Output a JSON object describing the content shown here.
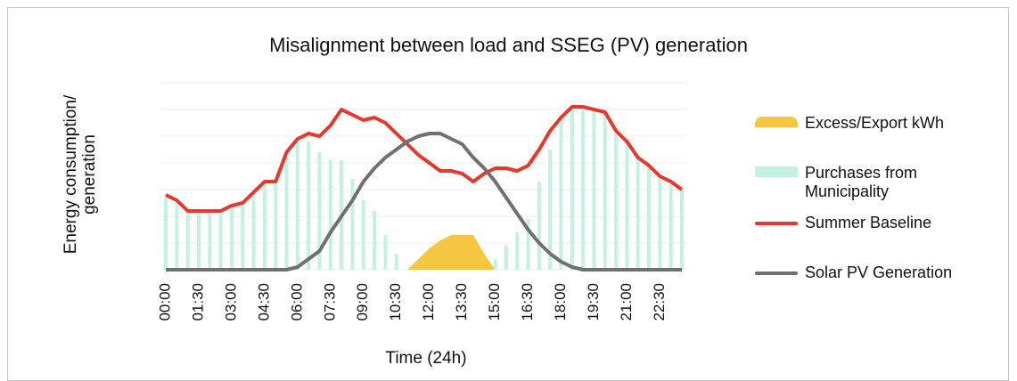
{
  "chart_data": {
    "type": "combo",
    "title": "Misalignment between load and SSEG (PV) generation",
    "y_label": "Energy consumption/ generation",
    "x_label": "Time (24h)",
    "categories": [
      "00:00",
      null,
      null,
      "01:30",
      null,
      null,
      "03:00",
      null,
      null,
      "04:30",
      null,
      null,
      "06:00",
      null,
      null,
      "07:30",
      null,
      null,
      "09:00",
      null,
      null,
      "10:30",
      null,
      null,
      "12:00",
      null,
      null,
      "13:30",
      null,
      null,
      "15:00",
      null,
      null,
      "16:30",
      null,
      null,
      "18:00",
      null,
      null,
      "19:30",
      null,
      null,
      "21:00",
      null,
      null,
      "22:30",
      null,
      null
    ],
    "ylim": [
      0,
      7
    ],
    "yticks": [
      0,
      1,
      2,
      3,
      4,
      5,
      6,
      7
    ],
    "grid": true,
    "series": [
      {
        "name": "Excess/Export kWh",
        "type": "area",
        "color": "#f7c744",
        "values": [
          null,
          null,
          null,
          null,
          null,
          null,
          null,
          null,
          null,
          null,
          null,
          null,
          null,
          null,
          null,
          null,
          null,
          null,
          null,
          null,
          null,
          null,
          0,
          0.4,
          0.8,
          1.1,
          1.3,
          1.3,
          1.3,
          0.6,
          0,
          null,
          null,
          null,
          null,
          null,
          null,
          null,
          null,
          null,
          null,
          null,
          null,
          null,
          null,
          null,
          null,
          null
        ]
      },
      {
        "name": "Purchases from Municipality",
        "type": "bar",
        "color": "#c3f3e0",
        "values": [
          2.7,
          2.5,
          2.2,
          2.1,
          2.1,
          2.1,
          2.3,
          2.5,
          2.8,
          3.2,
          3.2,
          4.2,
          4.8,
          4.8,
          4.4,
          4.1,
          4.1,
          3.4,
          2.6,
          2.2,
          1.3,
          0.6,
          0,
          0,
          0,
          0,
          0,
          0,
          0,
          0,
          0.4,
          0.9,
          1.4,
          1.9,
          3.3,
          4.5,
          5.8,
          6.0,
          6.0,
          5.9,
          5.8,
          5.1,
          4.7,
          4.2,
          3.8,
          3.5,
          3.2,
          3.0
        ]
      },
      {
        "name": "Summer Baseline",
        "type": "line",
        "color": "#e8382d",
        "values": [
          2.8,
          2.6,
          2.2,
          2.2,
          2.2,
          2.2,
          2.4,
          2.5,
          2.9,
          3.3,
          3.3,
          4.4,
          4.9,
          5.1,
          5.0,
          5.4,
          6.0,
          5.8,
          5.6,
          5.7,
          5.5,
          5.1,
          4.7,
          4.3,
          4.0,
          3.7,
          3.7,
          3.6,
          3.3,
          3.6,
          3.8,
          3.8,
          3.7,
          3.9,
          4.5,
          5.2,
          5.7,
          6.1,
          6.1,
          6.0,
          5.9,
          5.2,
          4.8,
          4.2,
          3.9,
          3.5,
          3.3,
          3.0
        ]
      },
      {
        "name": "Solar PV Generation",
        "type": "line",
        "color": "#707070",
        "values": [
          0,
          0,
          0,
          0,
          0,
          0,
          0,
          0,
          0,
          0,
          0,
          0,
          0.1,
          0.4,
          0.7,
          1.4,
          2.0,
          2.6,
          3.3,
          3.8,
          4.2,
          4.5,
          4.8,
          5.0,
          5.1,
          5.1,
          4.9,
          4.7,
          4.2,
          3.8,
          3.3,
          2.7,
          2.1,
          1.5,
          1.0,
          0.6,
          0.3,
          0.1,
          0,
          0,
          0,
          0,
          0,
          0,
          0,
          0,
          0,
          0
        ]
      }
    ]
  }
}
